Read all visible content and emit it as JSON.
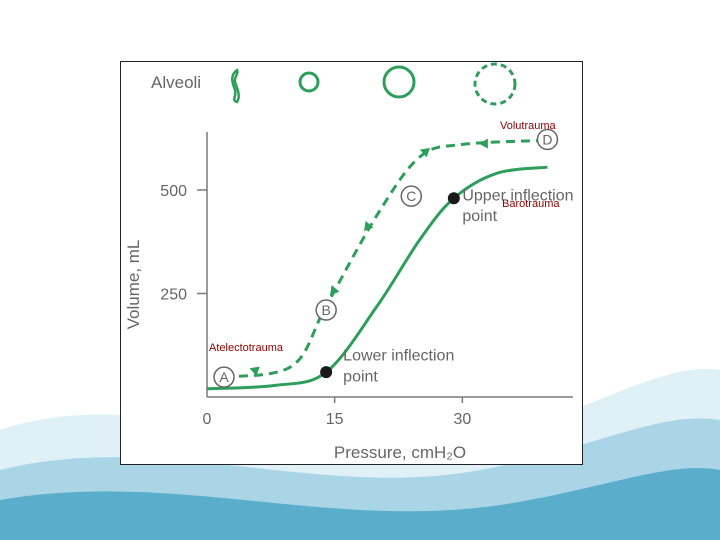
{
  "colors": {
    "curve": "#2e9e5b",
    "axis": "#7a7a7a",
    "text": "#666666",
    "marker": "#1a1a1a",
    "annotation_red": "#8b0000",
    "wave_dark": "#5aaecb",
    "wave_light": "#cfe8f2"
  },
  "chart_data": {
    "type": "line",
    "title": "",
    "xlabel": "Pressure, cmH₂O",
    "ylabel": "Volume, mL",
    "xlim": [
      0,
      43
    ],
    "ylim": [
      0,
      640
    ],
    "x_ticks": [
      {
        "value": 0,
        "label": "0"
      },
      {
        "value": 15,
        "label": "15"
      },
      {
        "value": 30,
        "label": "30"
      }
    ],
    "y_ticks": [
      {
        "value": 250,
        "label": "250"
      },
      {
        "value": 500,
        "label": "500"
      }
    ],
    "grid": false,
    "header": {
      "label": "Alveoli",
      "icons": [
        "collapsed-alveolus-icon",
        "small-alveolus-icon",
        "normal-alveolus-icon",
        "overdistended-alveolus-icon"
      ]
    },
    "series": [
      {
        "style": "solid",
        "points": [
          [
            0,
            20
          ],
          [
            8,
            28
          ],
          [
            14,
            60
          ],
          [
            20,
            220
          ],
          [
            25,
            380
          ],
          [
            29,
            480
          ],
          [
            34,
            540
          ],
          [
            40,
            555
          ]
        ]
      },
      {
        "style": "dashed",
        "points": [
          [
            2,
            48
          ],
          [
            10,
            75
          ],
          [
            14,
            220
          ],
          [
            20,
            440
          ],
          [
            25,
            580
          ],
          [
            30,
            610
          ],
          [
            40,
            620
          ]
        ]
      }
    ],
    "points": [
      {
        "label": "A",
        "x": 2,
        "y": 48,
        "style": "circle-label"
      },
      {
        "label": "B",
        "x": 14,
        "y": 210,
        "style": "circle-label"
      },
      {
        "label": "C",
        "x": 24,
        "y": 485,
        "style": "circle-label"
      },
      {
        "label": "D",
        "x": 40,
        "y": 622,
        "style": "circle-label"
      },
      {
        "label": "",
        "x": 14,
        "y": 60,
        "style": "dot"
      },
      {
        "label": "",
        "x": 29,
        "y": 480,
        "style": "dot"
      }
    ],
    "annotations": [
      {
        "text": "Lower inflection",
        "x": 16,
        "y": 88
      },
      {
        "text": "point",
        "x": 16,
        "y": 38
      },
      {
        "text": "Upper inflection",
        "x": 30,
        "y": 475
      },
      {
        "text": "point",
        "x": 30,
        "y": 425
      }
    ]
  },
  "overlay_labels": {
    "volutrauma": "Volutrauma",
    "barotrauma": "Barotrauma",
    "atelectotrauma": "Atelectotrauma"
  }
}
